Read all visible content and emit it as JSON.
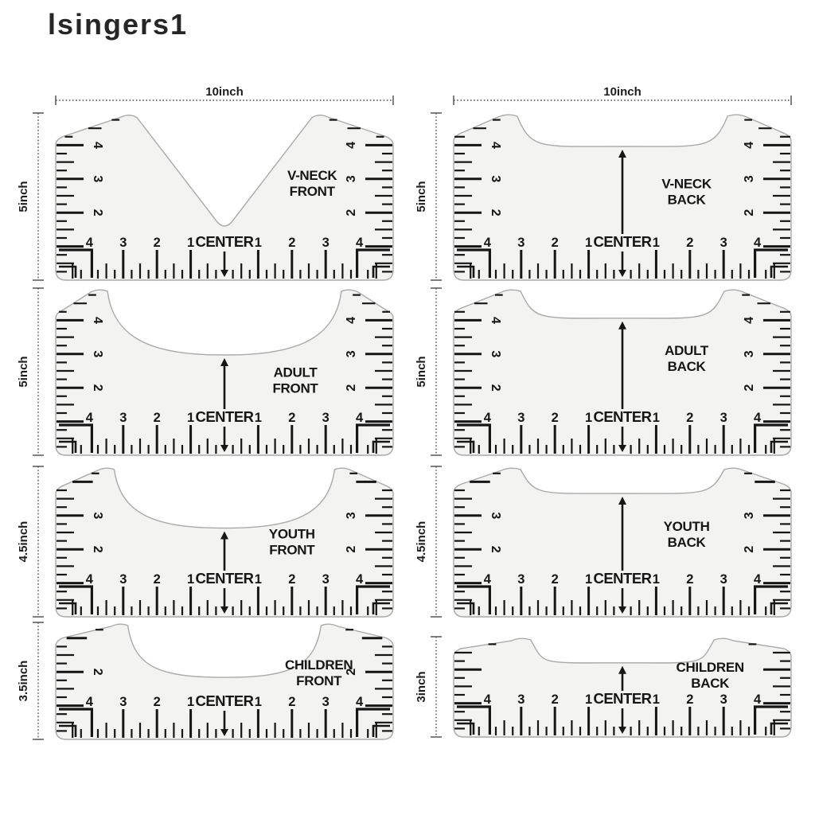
{
  "watermark": "lsingers1",
  "labels": {
    "width": "10inch",
    "center": "CENTER"
  },
  "bottom_numbers": [
    "1",
    "2",
    "3",
    "4"
  ],
  "colors": {
    "background": "#ffffff",
    "ruler_fill": "#f3f3f1",
    "ruler_outline": "#a9a9a9",
    "ink": "#161616",
    "indicator": "#4a4a4a",
    "watermark": "#262626"
  },
  "rulers": [
    {
      "name": "v-neck-front",
      "label_lines": [
        "V-NECK",
        "FRONT"
      ],
      "side_label": "5inch",
      "height_inches": 5,
      "neck": "v",
      "arrow": "down",
      "side_numbers": [
        4,
        3,
        2
      ],
      "column": 0,
      "row": 0,
      "show_width": true
    },
    {
      "name": "v-neck-back",
      "label_lines": [
        "V-NECK",
        "BACK"
      ],
      "side_label": "5inch",
      "height_inches": 5,
      "neck": "back",
      "arrow": "double",
      "side_numbers": [
        4,
        3,
        2
      ],
      "column": 1,
      "row": 0,
      "show_width": true
    },
    {
      "name": "adult-front",
      "label_lines": [
        "ADULT",
        "FRONT"
      ],
      "side_label": "5inch",
      "height_inches": 5,
      "neck": "scoop",
      "arrow": "double",
      "side_numbers": [
        4,
        3,
        2
      ],
      "column": 0,
      "row": 1,
      "show_width": false
    },
    {
      "name": "adult-back",
      "label_lines": [
        "ADULT",
        "BACK"
      ],
      "side_label": "5inch",
      "height_inches": 5,
      "neck": "back",
      "arrow": "double",
      "side_numbers": [
        4,
        3,
        2
      ],
      "column": 1,
      "row": 1,
      "show_width": false
    },
    {
      "name": "youth-front",
      "label_lines": [
        "YOUTH",
        "FRONT"
      ],
      "side_label": "4.5inch",
      "height_inches": 4.5,
      "neck": "scoop",
      "arrow": "double",
      "side_numbers": [
        3,
        2
      ],
      "column": 0,
      "row": 2,
      "show_width": false
    },
    {
      "name": "youth-back",
      "label_lines": [
        "YOUTH",
        "BACK"
      ],
      "side_label": "4.5inch",
      "height_inches": 4.5,
      "neck": "back",
      "arrow": "double",
      "side_numbers": [
        3,
        2
      ],
      "column": 1,
      "row": 2,
      "show_width": false
    },
    {
      "name": "children-front",
      "label_lines": [
        "CHILDREN",
        "FRONT"
      ],
      "side_label": "3.5inch",
      "height_inches": 3.5,
      "neck": "scoop",
      "arrow": "down",
      "side_numbers": [
        2
      ],
      "column": 0,
      "row": 3,
      "show_width": false
    },
    {
      "name": "children-back",
      "label_lines": [
        "CHILDREN",
        "BACK"
      ],
      "side_label": "3inch",
      "height_inches": 3,
      "neck": "back",
      "arrow": "double",
      "side_numbers": [],
      "column": 1,
      "row": 3,
      "show_width": false
    }
  ]
}
